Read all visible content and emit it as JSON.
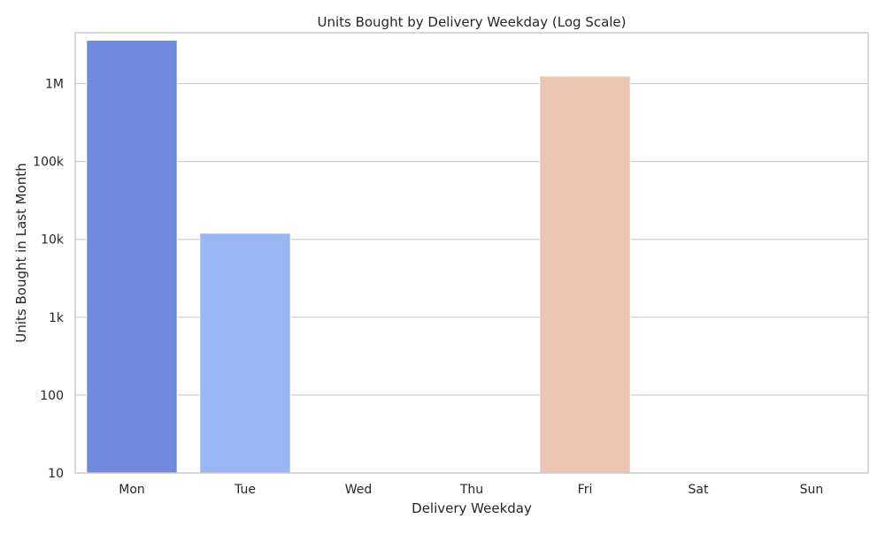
{
  "chart_data": {
    "type": "bar",
    "title": "Units Bought by Delivery Weekday (Log Scale)",
    "xlabel": "Delivery Weekday",
    "ylabel": "Units Bought in Last Month",
    "y_scale": "log",
    "ylim": [
      10,
      4500000
    ],
    "yticks": [
      {
        "value": 10,
        "label": "10"
      },
      {
        "value": 100,
        "label": "100"
      },
      {
        "value": 1000,
        "label": "1k"
      },
      {
        "value": 10000,
        "label": "10k"
      },
      {
        "value": 100000,
        "label": "100k"
      },
      {
        "value": 1000000,
        "label": "1M"
      }
    ],
    "categories": [
      "Mon",
      "Tue",
      "Wed",
      "Thu",
      "Fri",
      "Sat",
      "Sun"
    ],
    "values": [
      3600000,
      12000,
      0,
      0,
      1250000,
      0,
      0
    ],
    "colors": [
      "#7089dd",
      "#9ab5f3",
      "#c8d6ee",
      "#dcdcdc",
      "#ebc6b3",
      "#f1a689",
      "#e47a5f"
    ],
    "grid": "horizontal",
    "legend": "none"
  }
}
